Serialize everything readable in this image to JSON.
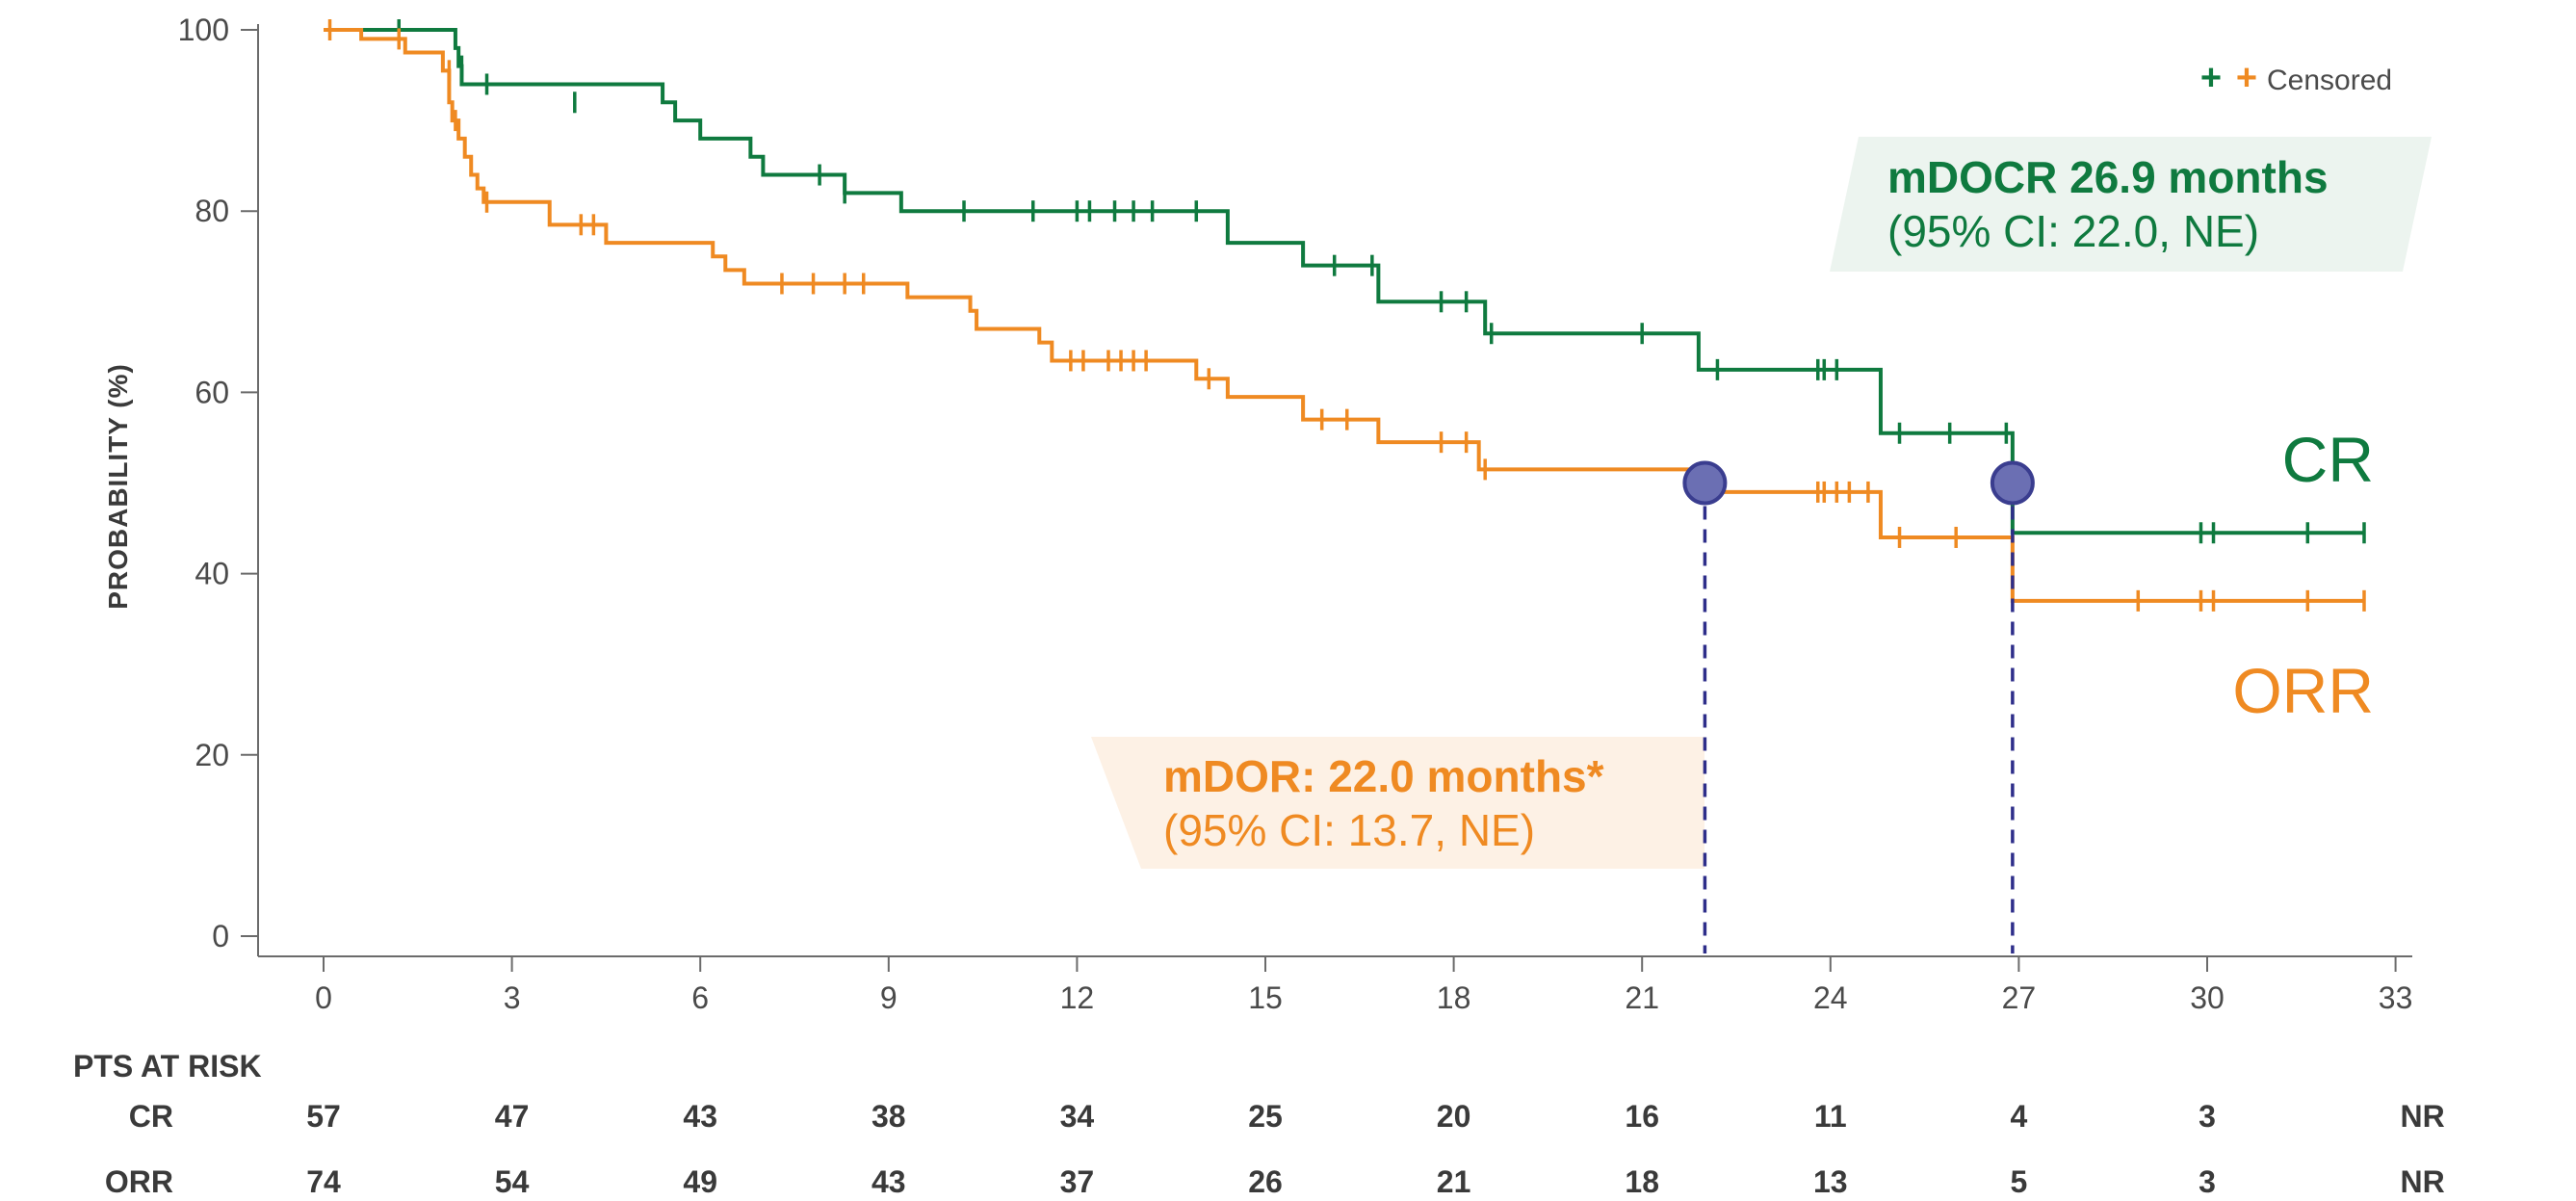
{
  "chart_data": {
    "type": "line",
    "step": true,
    "ylabel": "PROBABILITY (%)",
    "xlim": [
      0,
      33
    ],
    "ylim": [
      0,
      100
    ],
    "xticks": [
      0,
      3,
      6,
      9,
      12,
      15,
      18,
      21,
      24,
      27,
      30,
      33
    ],
    "yticks": [
      0,
      20,
      40,
      60,
      80,
      100
    ],
    "legend": {
      "label": "Censored",
      "position": "top-right"
    },
    "series": [
      {
        "name": "CR",
        "color": "#0f7a3f",
        "steps": [
          [
            0,
            100
          ],
          [
            2.1,
            98
          ],
          [
            2.15,
            96
          ],
          [
            2.2,
            94
          ],
          [
            5.4,
            92
          ],
          [
            5.6,
            90
          ],
          [
            6,
            88
          ],
          [
            6.8,
            86
          ],
          [
            7,
            84
          ],
          [
            8.3,
            82
          ],
          [
            9.2,
            80
          ],
          [
            14.4,
            76.5
          ],
          [
            15.6,
            74
          ],
          [
            16.8,
            70
          ],
          [
            18.5,
            66.5
          ],
          [
            21.9,
            62.5
          ],
          [
            24.8,
            55.5
          ],
          [
            26.9,
            44.5
          ],
          [
            32.5,
            44.5
          ]
        ],
        "censored": [
          [
            1.2,
            100
          ],
          [
            2.2,
            96
          ],
          [
            2.6,
            94
          ],
          [
            4,
            92
          ],
          [
            7.9,
            84
          ],
          [
            8.3,
            82
          ],
          [
            10.2,
            80
          ],
          [
            11.3,
            80
          ],
          [
            12,
            80
          ],
          [
            12.2,
            80
          ],
          [
            12.6,
            80
          ],
          [
            12.9,
            80
          ],
          [
            13.2,
            80
          ],
          [
            13.9,
            80
          ],
          [
            16.1,
            74
          ],
          [
            16.7,
            74
          ],
          [
            17.8,
            70
          ],
          [
            18.2,
            70
          ],
          [
            18.6,
            66.5
          ],
          [
            21,
            66.5
          ],
          [
            22.2,
            62.5
          ],
          [
            23.8,
            62.5
          ],
          [
            23.9,
            62.5
          ],
          [
            24.1,
            62.5
          ],
          [
            25.1,
            55.5
          ],
          [
            25.9,
            55.5
          ],
          [
            26.8,
            55.5
          ],
          [
            29.9,
            44.5
          ],
          [
            30.1,
            44.5
          ],
          [
            31.6,
            44.5
          ],
          [
            32.5,
            44.5
          ]
        ]
      },
      {
        "name": "ORR",
        "color": "#ef8a22",
        "steps": [
          [
            0,
            100
          ],
          [
            0.6,
            99
          ],
          [
            1.3,
            97.5
          ],
          [
            1.9,
            95.5
          ],
          [
            2,
            92
          ],
          [
            2.05,
            90
          ],
          [
            2.15,
            88
          ],
          [
            2.25,
            86
          ],
          [
            2.35,
            84
          ],
          [
            2.45,
            82.5
          ],
          [
            2.55,
            81
          ],
          [
            3.6,
            78.5
          ],
          [
            4.5,
            76.5
          ],
          [
            6.2,
            75
          ],
          [
            6.4,
            73.5
          ],
          [
            6.7,
            72
          ],
          [
            9.3,
            70.5
          ],
          [
            10.3,
            69
          ],
          [
            10.4,
            67
          ],
          [
            11.4,
            65.5
          ],
          [
            11.6,
            63.5
          ],
          [
            13.9,
            61.5
          ],
          [
            14.4,
            59.5
          ],
          [
            15.6,
            57
          ],
          [
            16.8,
            54.5
          ],
          [
            18.4,
            51.5
          ],
          [
            21.9,
            49
          ],
          [
            24.8,
            44
          ],
          [
            26.9,
            37
          ],
          [
            32.5,
            37
          ]
        ],
        "censored": [
          [
            0.1,
            100
          ],
          [
            1.2,
            99
          ],
          [
            2,
            95.5
          ],
          [
            2.1,
            90
          ],
          [
            2.6,
            81
          ],
          [
            4.1,
            78.5
          ],
          [
            4.3,
            78.5
          ],
          [
            7.3,
            72
          ],
          [
            7.8,
            72
          ],
          [
            8.3,
            72
          ],
          [
            8.6,
            72
          ],
          [
            11.9,
            63.5
          ],
          [
            12.1,
            63.5
          ],
          [
            12.5,
            63.5
          ],
          [
            12.7,
            63.5
          ],
          [
            12.9,
            63.5
          ],
          [
            13.1,
            63.5
          ],
          [
            14.1,
            61.5
          ],
          [
            15.9,
            57
          ],
          [
            16.3,
            57
          ],
          [
            17.8,
            54.5
          ],
          [
            18.2,
            54.5
          ],
          [
            18.5,
            51.5
          ],
          [
            22.1,
            49
          ],
          [
            23.8,
            49
          ],
          [
            23.9,
            49
          ],
          [
            24.1,
            49
          ],
          [
            24.3,
            49
          ],
          [
            24.6,
            49
          ],
          [
            25.1,
            44
          ],
          [
            26,
            44
          ],
          [
            28.9,
            37
          ],
          [
            29.9,
            37
          ],
          [
            30.1,
            37
          ],
          [
            31.6,
            37
          ],
          [
            32.5,
            37
          ]
        ]
      }
    ],
    "medians": [
      {
        "series": "ORR",
        "x": 22.0,
        "y": 50
      },
      {
        "series": "CR",
        "x": 26.9,
        "y": 50
      }
    ]
  },
  "legend_text": "Censored",
  "labels": {
    "cr": "CR",
    "orr": "ORR"
  },
  "annotations": {
    "cr_title": "mDOCR 26.9 months",
    "cr_ci": "(95% CI: 22.0, NE)",
    "orr_title": "mDOR: 22.0 months*",
    "orr_ci": "(95% CI: 13.7, NE)"
  },
  "risk_table": {
    "title": "PTS AT RISK",
    "rows": [
      {
        "label": "CR",
        "values": [
          "57",
          "47",
          "43",
          "38",
          "34",
          "25",
          "20",
          "16",
          "11",
          "4",
          "3",
          "NR"
        ]
      },
      {
        "label": "ORR",
        "values": [
          "74",
          "54",
          "49",
          "43",
          "37",
          "26",
          "21",
          "18",
          "13",
          "5",
          "3",
          "NR"
        ]
      }
    ]
  },
  "colors": {
    "cr": "#0f7a3f",
    "orr": "#ef8a22",
    "median_marker": "#6b6fb3",
    "axis": "#6b6b6b"
  }
}
